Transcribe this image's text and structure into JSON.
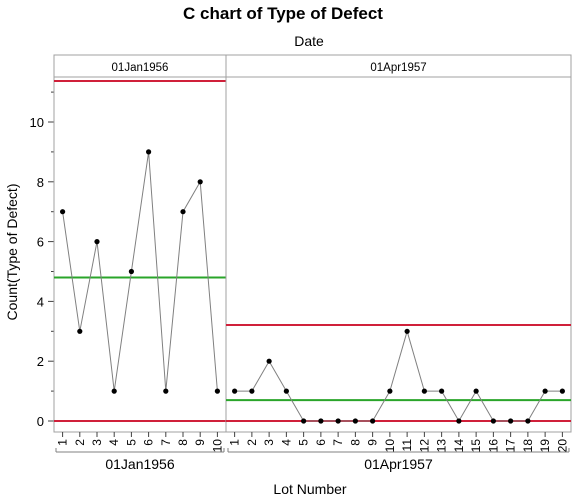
{
  "chart_data": {
    "type": "line",
    "title": "C chart of Type of Defect",
    "subtitle": "Date",
    "xlabel": "Lot Number",
    "ylabel": "Count(Type of Defect)",
    "ylim": [
      0,
      11.4
    ],
    "y_ticks": [
      0,
      2,
      4,
      6,
      8,
      10
    ],
    "grid": false,
    "panels": [
      {
        "label": "01Jan1956",
        "x": [
          1,
          2,
          3,
          4,
          5,
          6,
          7,
          8,
          9,
          10
        ],
        "values": [
          7,
          3,
          6,
          1,
          5,
          9,
          1,
          7,
          8,
          1
        ],
        "center_line": 4.8,
        "ucl": 11.37,
        "lcl": 0
      },
      {
        "label": "01Apr1957",
        "x": [
          1,
          2,
          3,
          4,
          5,
          6,
          7,
          8,
          9,
          10,
          11,
          12,
          13,
          14,
          15,
          16,
          17,
          18,
          19,
          20
        ],
        "values": [
          1,
          1,
          2,
          1,
          0,
          0,
          0,
          0,
          0,
          1,
          3,
          1,
          1,
          0,
          1,
          0,
          0,
          0,
          1,
          1
        ],
        "center_line": 0.7,
        "ucl": 3.21,
        "lcl": 0
      }
    ]
  },
  "colors": {
    "limit_line": "#d0203a",
    "center_line": "#2aa52a",
    "series_line": "#808080",
    "point": "#000000",
    "frame": "#a0a0a0"
  }
}
